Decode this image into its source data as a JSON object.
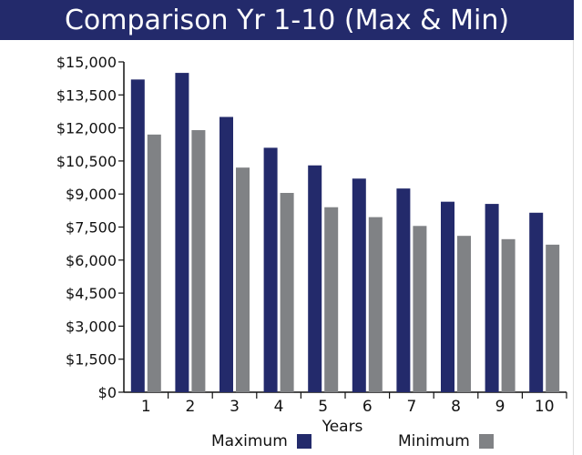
{
  "chart_data": {
    "type": "bar",
    "title": "Comparison Yr 1-10 (Max & Min)",
    "xlabel": "Years",
    "ylabel": "",
    "categories": [
      "1",
      "2",
      "3",
      "4",
      "5",
      "6",
      "7",
      "8",
      "9",
      "10"
    ],
    "series": [
      {
        "name": "Maximum",
        "color": "#232a6b",
        "values": [
          14200,
          14500,
          12500,
          11100,
          10300,
          9700,
          9250,
          8650,
          8550,
          8150
        ]
      },
      {
        "name": "Minimum",
        "color": "#808285",
        "values": [
          11700,
          11900,
          10200,
          9050,
          8400,
          7950,
          7550,
          7100,
          6950,
          6700
        ]
      }
    ],
    "ylim": [
      0,
      15000
    ],
    "yticks": [
      0,
      1500,
      3000,
      4500,
      6000,
      7500,
      9000,
      10500,
      12000,
      13500,
      15000
    ],
    "ytick_labels": [
      "$0",
      "$1,500",
      "$3,000",
      "$4,500",
      "$6,000",
      "$7,500",
      "$9,000",
      "$10,500",
      "$12,000",
      "$13,500",
      "$15,000"
    ],
    "grid": false,
    "legend": "bottom",
    "colors": {
      "title_bar": "#232a6b",
      "title_text": "#ffffff",
      "axis": "#111111"
    }
  }
}
